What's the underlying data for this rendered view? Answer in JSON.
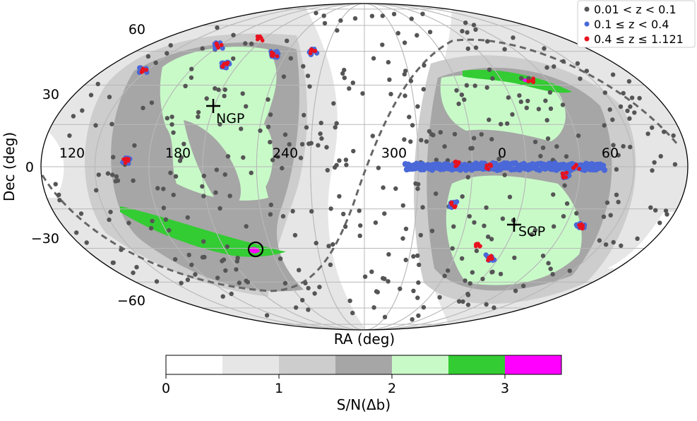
{
  "chart_data": {
    "type": "scatter",
    "projection": "mollweide",
    "xlabel": "RA (deg)",
    "ylabel": "Dec (deg)",
    "ra_ticks": [
      "120",
      "180",
      "240",
      "300",
      "0",
      "60"
    ],
    "dec_ticks": [
      "60",
      "30",
      "0",
      "−30",
      "−60"
    ],
    "poles": [
      {
        "name": "NGP",
        "x": 302,
        "y": 150
      },
      {
        "name": "SGP",
        "x": 728,
        "y": 318
      }
    ],
    "legend": [
      {
        "label": "0.01 < z < 0.1",
        "color": "#555555"
      },
      {
        "label": "0.1 ≤ z < 0.4",
        "color": "#4a68d8"
      },
      {
        "label": "0.4 ≤ z ≤ 1.121",
        "color": "#e8121e"
      }
    ],
    "colorbar": {
      "label": "S/N(Δb)",
      "ticks": [
        "0",
        "1",
        "2",
        "3"
      ],
      "range": [
        0,
        3.5
      ],
      "bins": [
        {
          "from": 0.0,
          "to": 0.5,
          "color": "#ffffff"
        },
        {
          "from": 0.5,
          "to": 1.0,
          "color": "#e6e6e6"
        },
        {
          "from": 1.0,
          "to": 1.5,
          "color": "#cdcdcd"
        },
        {
          "from": 1.5,
          "to": 2.0,
          "color": "#a6a6a6"
        },
        {
          "from": 2.0,
          "to": 2.5,
          "color": "#c8fac8"
        },
        {
          "from": 2.5,
          "to": 3.0,
          "color": "#33cc33"
        },
        {
          "from": 3.0,
          "to": 3.5,
          "color": "#ff00ff"
        }
      ]
    },
    "colors": {
      "low_z": "#555555",
      "mid_z": "#4a68d8",
      "high_z": "#e8121e",
      "gray1": "#e6e6e6",
      "gray2": "#cdcdcd",
      "gray3": "#a6a6a6",
      "green1": "#c8fac8",
      "green2": "#33cc33",
      "magenta": "#ff00ff"
    }
  }
}
